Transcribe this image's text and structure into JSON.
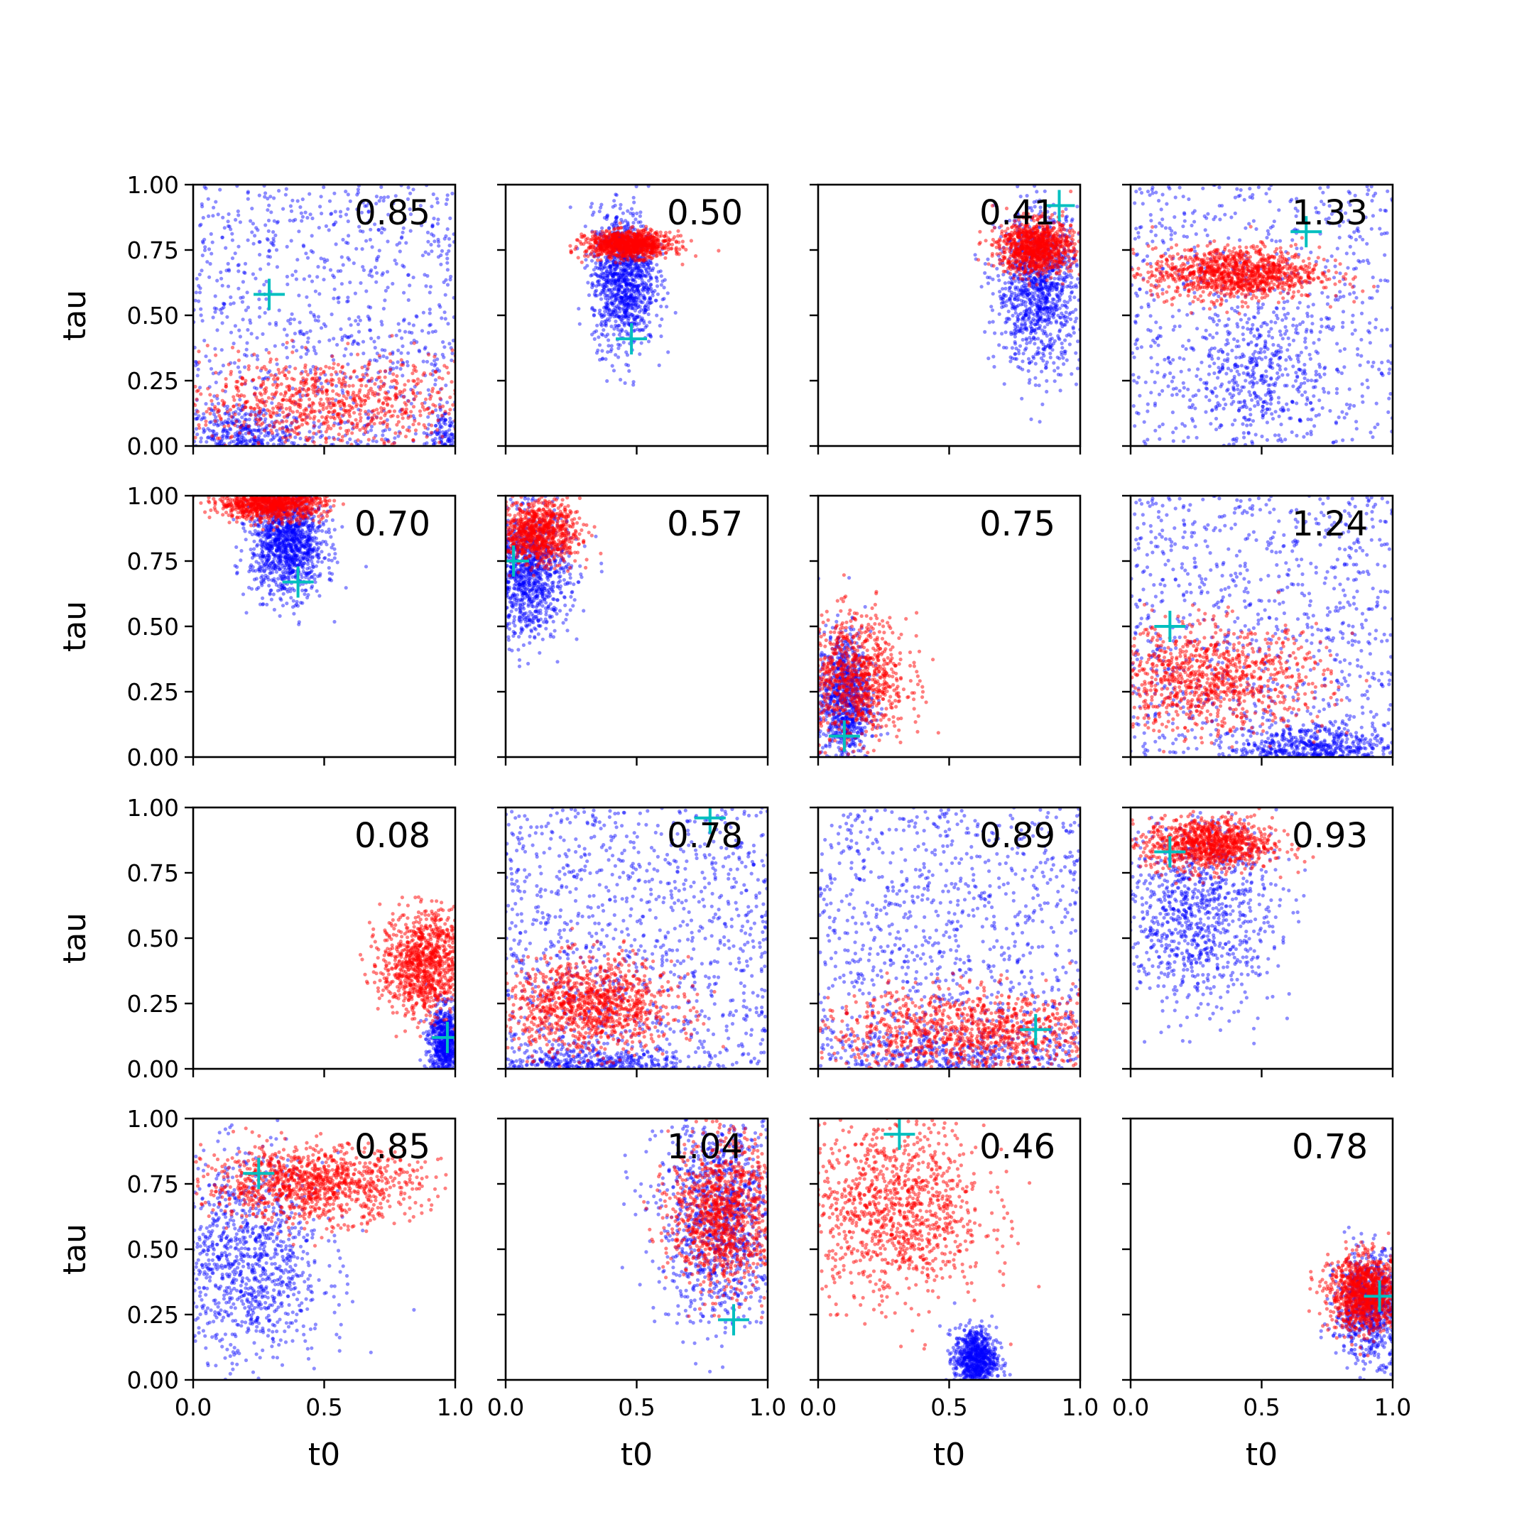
{
  "chart_data": {
    "type": "scatter",
    "grid": false,
    "layout": "4x4 grid of scatter subplots, shared axes",
    "xlabel": "t0",
    "ylabel": "tau",
    "xlim": [
      0,
      1
    ],
    "ylim": [
      0,
      1
    ],
    "x_ticks": [
      "0.0",
      "0.5",
      "1.0"
    ],
    "y_ticks": [
      "0.00",
      "0.25",
      "0.50",
      "0.75",
      "1.00"
    ],
    "colors": {
      "prior": "#0000ff",
      "posterior": "#ff0000",
      "truth": "#00bfbf"
    },
    "panels": [
      {
        "value": "0.85",
        "truth": [
          0.29,
          0.58
        ],
        "blue": {
          "type": "uniform",
          "n": 900,
          "bias": [
            0.0,
            0.05
          ],
          "lumps": [
            [
              0.2,
              0.05,
              0.12,
              0.05,
              0.3
            ],
            [
              0.95,
              0.05,
              0.03,
              0.05,
              0.1
            ]
          ]
        },
        "red": {
          "cx": 0.5,
          "cy": 0.16,
          "sx": 0.3,
          "sy": 0.09,
          "n": 900
        }
      },
      {
        "value": "0.50",
        "truth": [
          0.48,
          0.41
        ],
        "blue": {
          "type": "gauss",
          "cx": 0.45,
          "cy": 0.64,
          "sx": 0.06,
          "sy": 0.13,
          "n": 1100
        },
        "red": {
          "cx": 0.47,
          "cy": 0.77,
          "sx": 0.08,
          "sy": 0.025,
          "n": 1000
        }
      },
      {
        "value": "0.41",
        "truth": [
          0.92,
          0.92
        ],
        "blue": {
          "type": "gauss",
          "cx": 0.84,
          "cy": 0.6,
          "sx": 0.08,
          "sy": 0.15,
          "n": 1100
        },
        "red": {
          "cx": 0.83,
          "cy": 0.76,
          "sx": 0.07,
          "sy": 0.05,
          "n": 1000
        }
      },
      {
        "value": "1.33",
        "truth": [
          0.67,
          0.82
        ],
        "blue": {
          "type": "uniform",
          "n": 700,
          "bias": [
            0.0,
            0.0
          ],
          "lumps": [
            [
              0.5,
              0.3,
              0.12,
              0.12,
              0.5
            ]
          ]
        },
        "red": {
          "cx": 0.4,
          "cy": 0.66,
          "sx": 0.16,
          "sy": 0.05,
          "n": 1100
        }
      },
      {
        "value": "0.70",
        "truth": [
          0.4,
          0.67
        ],
        "blue": {
          "type": "gauss",
          "cx": 0.36,
          "cy": 0.82,
          "sx": 0.07,
          "sy": 0.1,
          "n": 1200
        },
        "red": {
          "cx": 0.3,
          "cy": 0.97,
          "sx": 0.1,
          "sy": 0.03,
          "n": 1000
        }
      },
      {
        "value": "0.57",
        "truth": [
          0.03,
          0.75
        ],
        "blue": {
          "type": "gauss",
          "cx": 0.08,
          "cy": 0.7,
          "sx": 0.08,
          "sy": 0.12,
          "n": 1100
        },
        "red": {
          "cx": 0.12,
          "cy": 0.86,
          "sx": 0.08,
          "sy": 0.06,
          "n": 900
        }
      },
      {
        "value": "0.75",
        "truth": [
          0.1,
          0.08
        ],
        "blue": {
          "type": "gauss",
          "cx": 0.1,
          "cy": 0.22,
          "sx": 0.05,
          "sy": 0.13,
          "n": 900
        },
        "red": {
          "cx": 0.14,
          "cy": 0.3,
          "sx": 0.1,
          "sy": 0.12,
          "n": 900
        }
      },
      {
        "value": "1.24",
        "truth": [
          0.15,
          0.5
        ],
        "blue": {
          "type": "uniform",
          "n": 900,
          "bias": [
            0.0,
            0.0
          ],
          "lumps": [
            [
              0.7,
              0.03,
              0.15,
              0.05,
              0.5
            ]
          ]
        },
        "red": {
          "cx": 0.3,
          "cy": 0.3,
          "sx": 0.22,
          "sy": 0.1,
          "n": 1000
        }
      },
      {
        "value": "0.08",
        "truth": [
          0.97,
          0.12
        ],
        "blue": {
          "type": "gauss",
          "cx": 0.96,
          "cy": 0.1,
          "sx": 0.03,
          "sy": 0.07,
          "n": 700
        },
        "red": {
          "cx": 0.88,
          "cy": 0.4,
          "sx": 0.08,
          "sy": 0.1,
          "n": 1000
        }
      },
      {
        "value": "0.78",
        "truth": [
          0.78,
          0.96
        ],
        "blue": {
          "type": "uniform",
          "n": 1100,
          "bias": [
            0.0,
            0.0
          ],
          "lumps": [
            [
              0.3,
              0.02,
              0.2,
              0.04,
              0.3
            ]
          ]
        },
        "red": {
          "cx": 0.32,
          "cy": 0.24,
          "sx": 0.16,
          "sy": 0.09,
          "n": 1100
        }
      },
      {
        "value": "0.89",
        "truth": [
          0.83,
          0.15
        ],
        "blue": {
          "type": "uniform",
          "n": 1000,
          "bias": [
            0.0,
            0.0
          ],
          "lumps": [
            [
              0.5,
              0.04,
              0.3,
              0.05,
              0.3
            ]
          ]
        },
        "red": {
          "cx": 0.6,
          "cy": 0.14,
          "sx": 0.3,
          "sy": 0.08,
          "n": 1100
        }
      },
      {
        "value": "0.93",
        "truth": [
          0.15,
          0.83
        ],
        "blue": {
          "type": "gauss",
          "cx": 0.25,
          "cy": 0.6,
          "sx": 0.15,
          "sy": 0.18,
          "n": 1000
        },
        "red": {
          "cx": 0.3,
          "cy": 0.86,
          "sx": 0.12,
          "sy": 0.05,
          "n": 1000
        }
      },
      {
        "value": "0.85",
        "truth": [
          0.25,
          0.79
        ],
        "blue": {
          "type": "gauss",
          "cx": 0.2,
          "cy": 0.45,
          "sx": 0.15,
          "sy": 0.2,
          "n": 1100
        },
        "red": {
          "cx": 0.45,
          "cy": 0.75,
          "sx": 0.2,
          "sy": 0.07,
          "n": 1100
        }
      },
      {
        "value": "1.04",
        "truth": [
          0.87,
          0.23
        ],
        "blue": {
          "type": "gauss",
          "cx": 0.82,
          "cy": 0.62,
          "sx": 0.12,
          "sy": 0.2,
          "n": 1100
        },
        "red": {
          "cx": 0.83,
          "cy": 0.63,
          "sx": 0.1,
          "sy": 0.14,
          "n": 1100
        }
      },
      {
        "value": "0.46",
        "truth": [
          0.31,
          0.94
        ],
        "blue": {
          "type": "gauss",
          "cx": 0.6,
          "cy": 0.08,
          "sx": 0.04,
          "sy": 0.06,
          "n": 800
        },
        "red": {
          "cx": 0.3,
          "cy": 0.65,
          "sx": 0.17,
          "sy": 0.17,
          "n": 1100
        }
      },
      {
        "value": "0.78",
        "truth": [
          0.95,
          0.32
        ],
        "blue": {
          "type": "gauss",
          "cx": 0.92,
          "cy": 0.28,
          "sx": 0.07,
          "sy": 0.1,
          "n": 900
        },
        "red": {
          "cx": 0.9,
          "cy": 0.33,
          "sx": 0.07,
          "sy": 0.07,
          "n": 1100
        }
      }
    ]
  }
}
